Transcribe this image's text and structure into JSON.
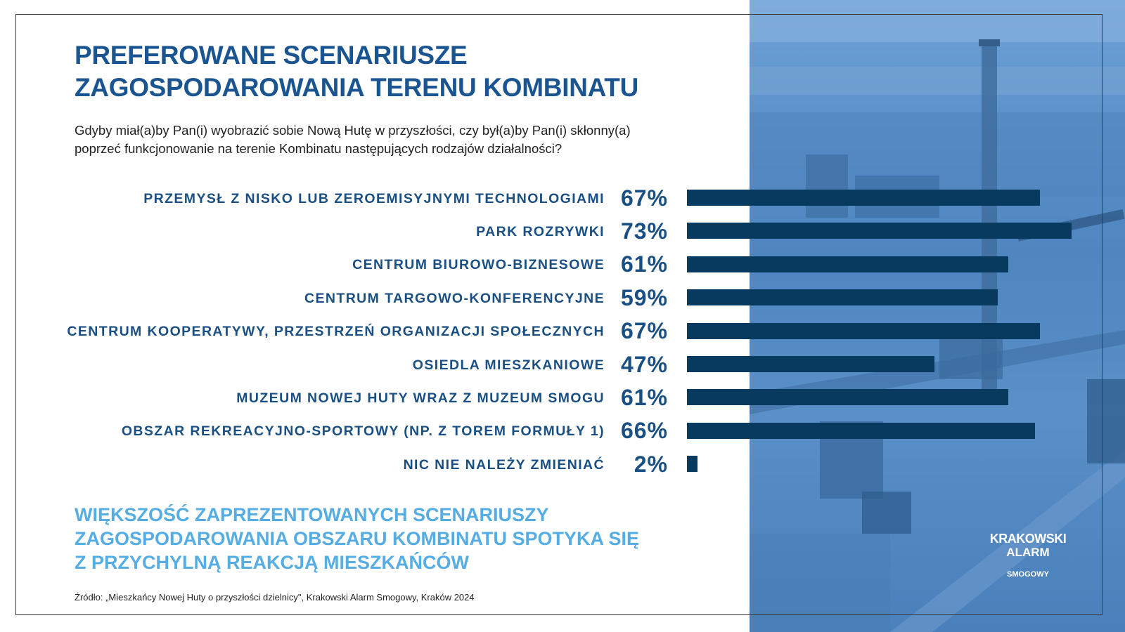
{
  "title": [
    "PREFEROWANE SCENARIUSZE",
    "ZAGOSPODAROWANIA TERENU KOMBINATU"
  ],
  "subtitle": [
    "Gdyby miał(a)by Pan(i) wyobrazić sobie Nową Hutę w przyszłości, czy był(a)by Pan(i) skłonny(a)",
    "poprzeć funkcjonowanie na terenie Kombinatu następujących rodzajów działalności?"
  ],
  "chart_data": {
    "type": "bar",
    "orientation": "horizontal",
    "categories": [
      "PRZEMYSŁ Z NISKO LUB ZEROEMISYJNYMI TECHNOLOGIAMI",
      "PARK ROZRYWKI",
      "CENTRUM BIUROWO-BIZNESOWE",
      "CENTRUM TARGOWO-KONFERENCYJNE",
      "CENTRUM KOOPERATYWY, PRZESTRZEŃ ORGANIZACJI SPOŁECZNYCH",
      "OSIEDLA MIESZKANIOWE",
      "MUZEUM NOWEJ HUTY WRAZ Z MUZEUM SMOGU",
      "OBSZAR REKREACYJNO-SPORTOWY (NP. Z TOREM FORMUŁY 1)",
      "NIC NIE NALEŻY ZMIENIAĆ"
    ],
    "values": [
      67,
      73,
      61,
      59,
      67,
      47,
      61,
      66,
      2
    ],
    "value_labels": [
      "67%",
      "73%",
      "61%",
      "59%",
      "67%",
      "47%",
      "61%",
      "66%",
      "2%"
    ],
    "xlim": [
      0,
      73
    ],
    "bar_color": "#073a5e",
    "grid": false
  },
  "conclusion": [
    "WIĘKSZOŚĆ ZAPREZENTOWANYCH SCENARIUSZY",
    "ZAGOSPODAROWANIA OBSZARU KOMBINATU SPOTYKA SIĘ",
    "Z PRZYCHYLNĄ REAKCJĄ MIESZKAŃCÓW"
  ],
  "source": "Źródło: „Mieszkańcy Nowej Huty o przyszłości dzielnicy\", Krakowski Alarm Smogowy, Kraków 2024",
  "logo": {
    "line1": "KRAKOWSKI",
    "line2": "ALARM",
    "line3": "SMOGOWY"
  },
  "colors": {
    "title": "#1a5591",
    "labels": "#1a4f84",
    "conclusion": "#56ade3",
    "photo_tint": "#5a8fc7"
  }
}
